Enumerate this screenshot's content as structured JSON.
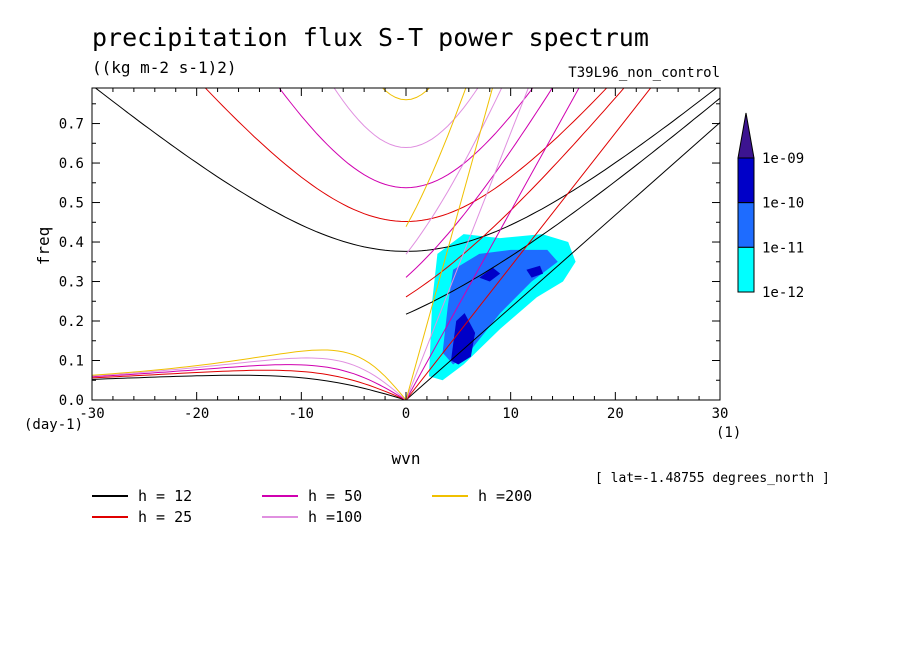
{
  "chart_data": {
    "type": "line",
    "title": "precipitation flux S-T power spectrum",
    "units_label": "((kg m-2 s-1)2)",
    "run_label": "T39L96_non_control",
    "xlabel": "wvn",
    "ylabel": "freq",
    "x_unit": "(1)",
    "y_unit": "(day-1)",
    "annotation": "[ lat=-1.48755 degrees_north ]",
    "xlim": [
      -30,
      30
    ],
    "ylim": [
      0,
      0.79
    ],
    "x_ticks": [
      -30,
      -20,
      -10,
      0,
      10,
      20,
      30
    ],
    "x_tick_labels": [
      "-30",
      "-20",
      "-10",
      "0",
      "10",
      "20",
      "30"
    ],
    "y_ticks": [
      0,
      0.1,
      0.2,
      0.3,
      0.4,
      0.5,
      0.6,
      0.7
    ],
    "y_tick_labels": [
      "0.0",
      "0.1",
      "0.2",
      "0.3",
      "0.4",
      "0.5",
      "0.6",
      "0.7"
    ],
    "series": [
      {
        "name": "h = 12",
        "label": "h = 12",
        "h": 12,
        "color": "#000000"
      },
      {
        "name": "h = 25",
        "label": "h = 25",
        "h": 25,
        "color": "#e00000"
      },
      {
        "name": "h = 50",
        "label": "h = 50",
        "h": 50,
        "color": "#d000b0"
      },
      {
        "name": "h =100",
        "label": "h =100",
        "h": 100,
        "color": "#e090e0"
      },
      {
        "name": "h =200",
        "label": "h =200",
        "h": 200,
        "color": "#f0c000"
      }
    ],
    "colorbar": {
      "labels": [
        "1e-09",
        "1e-10",
        "1e-11",
        "1e-12"
      ],
      "levels": [
        {
          "range": "1e-12..1e-11",
          "color": "#00ffff"
        },
        {
          "range": "1e-11..1e-10",
          "color": "#1e6cff"
        },
        {
          "range": "1e-10..1e-09",
          "color": "#0000c8"
        },
        {
          "range": ">1e-09",
          "color": "#3c1490"
        }
      ]
    },
    "spectral_power_regions": [
      {
        "level": "1e-12..1e-11",
        "color": "#00ffff",
        "points": [
          [
            2.2,
            0.06
          ],
          [
            2.5,
            0.25
          ],
          [
            3.0,
            0.37
          ],
          [
            5.5,
            0.42
          ],
          [
            9,
            0.41
          ],
          [
            13,
            0.42
          ],
          [
            15.5,
            0.4
          ],
          [
            16.2,
            0.35
          ],
          [
            15,
            0.3
          ],
          [
            12.5,
            0.26
          ],
          [
            9,
            0.18
          ],
          [
            5.5,
            0.09
          ],
          [
            3.5,
            0.05
          ]
        ]
      },
      {
        "level": "1e-11..1e-10",
        "color": "#1e6cff",
        "points": [
          [
            3.5,
            0.12
          ],
          [
            4,
            0.24
          ],
          [
            4.5,
            0.33
          ],
          [
            7,
            0.37
          ],
          [
            10,
            0.38
          ],
          [
            13.5,
            0.38
          ],
          [
            14.5,
            0.35
          ],
          [
            12,
            0.3
          ],
          [
            9,
            0.22
          ],
          [
            6,
            0.12
          ],
          [
            4.5,
            0.09
          ]
        ]
      },
      {
        "level": "1e-10..1e-09",
        "color": "#0000c8",
        "points": [
          [
            4.3,
            0.1
          ],
          [
            4.8,
            0.2
          ],
          [
            5.6,
            0.22
          ],
          [
            6.6,
            0.17
          ],
          [
            6.2,
            0.11
          ],
          [
            5.0,
            0.09
          ]
        ]
      },
      {
        "level": "1e-10..1e-09",
        "color": "#0000c8",
        "points": [
          [
            7.0,
            0.31
          ],
          [
            8.3,
            0.335
          ],
          [
            9.0,
            0.32
          ],
          [
            8.0,
            0.3
          ]
        ]
      },
      {
        "level": "1e-10..1e-09",
        "color": "#0000c8",
        "points": [
          [
            11.5,
            0.33
          ],
          [
            12.8,
            0.34
          ],
          [
            13.1,
            0.32
          ],
          [
            12.0,
            0.31
          ]
        ]
      }
    ]
  }
}
